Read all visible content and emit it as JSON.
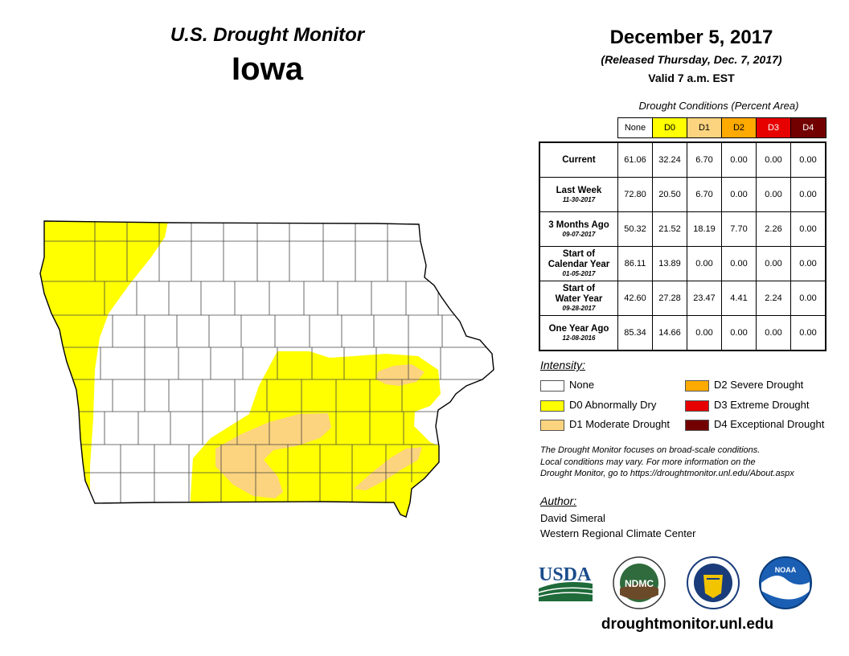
{
  "header": {
    "title": "U.S. Drought Monitor",
    "state": "Iowa",
    "date": "December 5, 2017",
    "released": "(Released Thursday, Dec. 7, 2017)",
    "valid": "Valid 7 a.m. EST"
  },
  "table": {
    "title": "Drought Conditions (Percent Area)",
    "columns": [
      "None",
      "D0",
      "D1",
      "D2",
      "D3",
      "D4"
    ],
    "rows": [
      {
        "label1": "Current",
        "label2": "",
        "sub": "",
        "values": [
          "61.06",
          "32.24",
          "6.70",
          "0.00",
          "0.00",
          "0.00"
        ]
      },
      {
        "label1": "Last Week",
        "label2": "",
        "sub": "11-30-2017",
        "values": [
          "72.80",
          "20.50",
          "6.70",
          "0.00",
          "0.00",
          "0.00"
        ]
      },
      {
        "label1": "3 Months Ago",
        "label2": "",
        "sub": "09-07-2017",
        "values": [
          "50.32",
          "21.52",
          "18.19",
          "7.70",
          "2.26",
          "0.00"
        ]
      },
      {
        "label1": "Start of",
        "label2": "Calendar Year",
        "sub": "01-05-2017",
        "values": [
          "86.11",
          "13.89",
          "0.00",
          "0.00",
          "0.00",
          "0.00"
        ]
      },
      {
        "label1": "Start of",
        "label2": "Water Year",
        "sub": "09-28-2017",
        "values": [
          "42.60",
          "27.28",
          "23.47",
          "4.41",
          "2.24",
          "0.00"
        ]
      },
      {
        "label1": "One Year Ago",
        "label2": "",
        "sub": "12-08-2016",
        "values": [
          "85.34",
          "14.66",
          "0.00",
          "0.00",
          "0.00",
          "0.00"
        ]
      }
    ]
  },
  "legend": {
    "title": "Intensity:",
    "items": [
      {
        "label": "None",
        "color": "#ffffff"
      },
      {
        "label": "D0 Abnormally Dry",
        "color": "#ffff00"
      },
      {
        "label": "D1 Moderate Drought",
        "color": "#fcd37f"
      },
      {
        "label": "D2 Severe Drought",
        "color": "#ffaa00"
      },
      {
        "label": "D3 Extreme Drought",
        "color": "#e60000"
      },
      {
        "label": "D4 Exceptional Drought",
        "color": "#730000"
      }
    ]
  },
  "note": {
    "line1": "The Drought Monitor focuses on broad-scale conditions.",
    "line2": "Local conditions may vary. For more information on the",
    "line3": "Drought Monitor, go to https://droughtmonitor.unl.edu/About.aspx"
  },
  "author": {
    "label": "Author:",
    "name": "David Simeral",
    "org": "Western Regional Climate Center"
  },
  "logos": {
    "usda": "USDA",
    "ndmc": "NDMC",
    "noaa": "NOAA"
  },
  "website": "droughtmonitor.unl.edu"
}
